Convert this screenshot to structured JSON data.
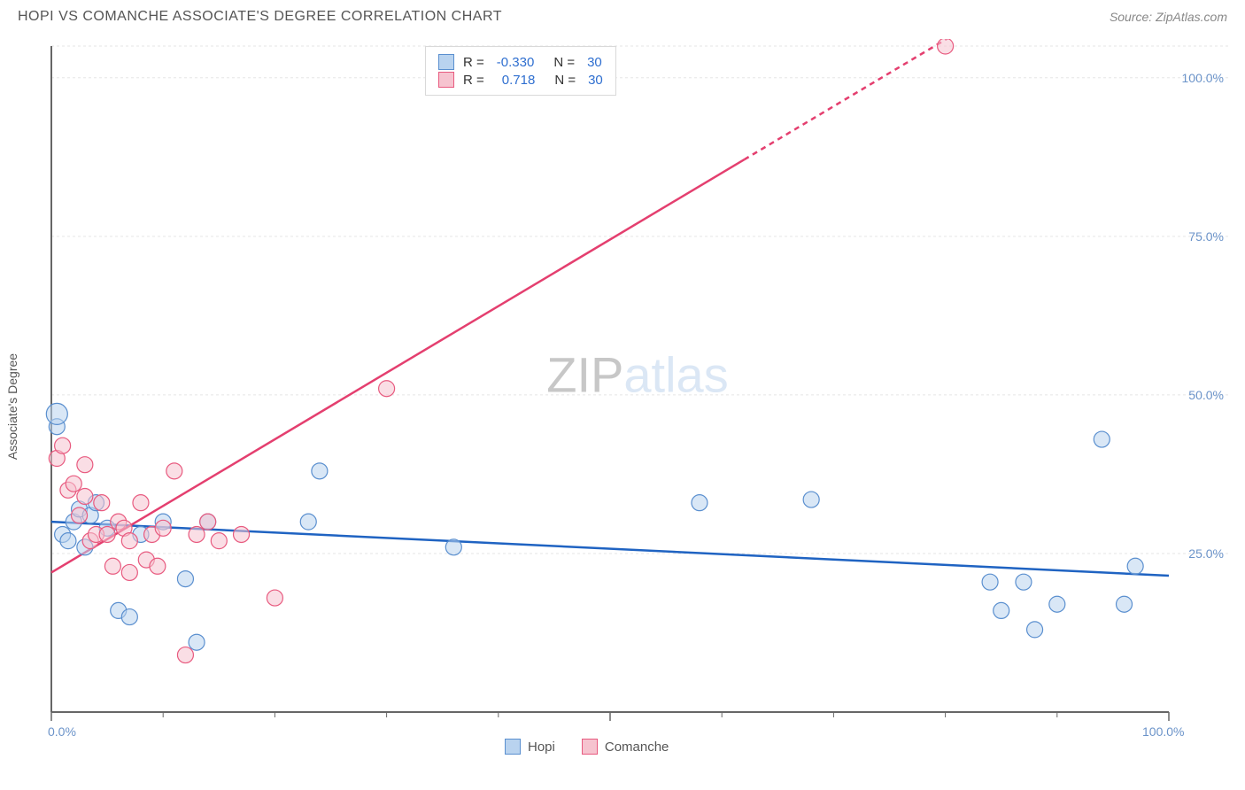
{
  "header": {
    "title": "HOPI VS COMANCHE ASSOCIATE'S DEGREE CORRELATION CHART",
    "source": "Source: ZipAtlas.com"
  },
  "ylabel": "Associate's Degree",
  "watermark": {
    "part1": "ZIP",
    "part2": "atlas"
  },
  "chart": {
    "type": "scatter",
    "xlim": [
      0,
      100
    ],
    "ylim": [
      0,
      105
    ],
    "x_ticks": [
      0,
      50,
      100
    ],
    "x_minor_ticks": [
      10,
      20,
      30,
      40,
      60,
      70,
      80,
      90
    ],
    "y_gridlines": [
      25,
      50,
      75,
      100,
      105
    ],
    "y_tick_labels": [
      "25.0%",
      "50.0%",
      "75.0%",
      "100.0%"
    ],
    "x_tick_labels": {
      "left": "0.0%",
      "right": "100.0%"
    },
    "axis_color": "#666666",
    "axis_stroke": 2,
    "grid_color": "#e5e5e5",
    "grid_dash": "3,3",
    "background": "#ffffff",
    "label_color": "#6b93c9",
    "y_label_fontsize": 14,
    "series": [
      {
        "name": "Hopi",
        "fill": "#b9d3ef",
        "stroke": "#5a8fcf",
        "stroke_width": 1.2,
        "fill_opacity": 0.55,
        "point_radius": 9,
        "regression": {
          "slope": -0.085,
          "intercept": 30,
          "color": "#1f63c2",
          "width": 2.5,
          "dash_tail_start": 100
        },
        "stats": {
          "R": "-0.330",
          "N": "30"
        },
        "points": [
          {
            "x": 0.5,
            "y": 45
          },
          {
            "x": 0.5,
            "y": 47,
            "r": 12
          },
          {
            "x": 1,
            "y": 28
          },
          {
            "x": 1.5,
            "y": 27
          },
          {
            "x": 2,
            "y": 30
          },
          {
            "x": 2.5,
            "y": 32
          },
          {
            "x": 3,
            "y": 26
          },
          {
            "x": 3.5,
            "y": 31
          },
          {
            "x": 4,
            "y": 33
          },
          {
            "x": 5,
            "y": 29
          },
          {
            "x": 6,
            "y": 16
          },
          {
            "x": 7,
            "y": 15
          },
          {
            "x": 8,
            "y": 28
          },
          {
            "x": 10,
            "y": 30
          },
          {
            "x": 12,
            "y": 21
          },
          {
            "x": 13,
            "y": 11
          },
          {
            "x": 14,
            "y": 30
          },
          {
            "x": 23,
            "y": 30
          },
          {
            "x": 24,
            "y": 38
          },
          {
            "x": 36,
            "y": 26
          },
          {
            "x": 58,
            "y": 33
          },
          {
            "x": 68,
            "y": 33.5
          },
          {
            "x": 84,
            "y": 20.5
          },
          {
            "x": 85,
            "y": 16
          },
          {
            "x": 87,
            "y": 20.5
          },
          {
            "x": 88,
            "y": 13
          },
          {
            "x": 90,
            "y": 17
          },
          {
            "x": 94,
            "y": 43
          },
          {
            "x": 96,
            "y": 17
          },
          {
            "x": 97,
            "y": 23
          }
        ]
      },
      {
        "name": "Comanche",
        "fill": "#f6c3cf",
        "stroke": "#e85a7f",
        "stroke_width": 1.2,
        "fill_opacity": 0.55,
        "point_radius": 9,
        "regression": {
          "slope": 1.05,
          "intercept": 22,
          "color": "#e43f6f",
          "width": 2.5,
          "dash_tail_start": 62
        },
        "stats": {
          "R": "0.718",
          "N": "30"
        },
        "points": [
          {
            "x": 0.5,
            "y": 40
          },
          {
            "x": 1,
            "y": 42
          },
          {
            "x": 1.5,
            "y": 35
          },
          {
            "x": 2,
            "y": 36
          },
          {
            "x": 2.5,
            "y": 31
          },
          {
            "x": 3,
            "y": 39
          },
          {
            "x": 3,
            "y": 34
          },
          {
            "x": 3.5,
            "y": 27
          },
          {
            "x": 4,
            "y": 28
          },
          {
            "x": 4.5,
            "y": 33
          },
          {
            "x": 5,
            "y": 28
          },
          {
            "x": 5.5,
            "y": 23
          },
          {
            "x": 6,
            "y": 30
          },
          {
            "x": 6.5,
            "y": 29
          },
          {
            "x": 7,
            "y": 27
          },
          {
            "x": 7,
            "y": 22
          },
          {
            "x": 8,
            "y": 33
          },
          {
            "x": 8.5,
            "y": 24
          },
          {
            "x": 9,
            "y": 28
          },
          {
            "x": 9.5,
            "y": 23
          },
          {
            "x": 10,
            "y": 29
          },
          {
            "x": 11,
            "y": 38
          },
          {
            "x": 12,
            "y": 9
          },
          {
            "x": 13,
            "y": 28
          },
          {
            "x": 14,
            "y": 30
          },
          {
            "x": 15,
            "y": 27
          },
          {
            "x": 17,
            "y": 28
          },
          {
            "x": 20,
            "y": 18
          },
          {
            "x": 30,
            "y": 51
          },
          {
            "x": 80,
            "y": 105
          }
        ]
      }
    ]
  },
  "stat_legend": {
    "r_label": "R =",
    "n_label": "N ="
  },
  "series_legend": {
    "items": [
      "Hopi",
      "Comanche"
    ]
  }
}
